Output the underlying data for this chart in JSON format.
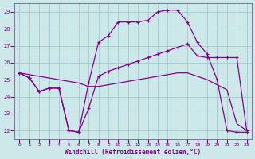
{
  "title": "Windchill (Refroidissement éolien,°C)",
  "background_color": "#cce8e8",
  "grid_color": "#9ac4cc",
  "line_color": "#880088",
  "xlim": [
    -0.5,
    23.5
  ],
  "ylim": [
    21.5,
    29.5
  ],
  "xticks": [
    0,
    1,
    2,
    3,
    4,
    5,
    6,
    7,
    8,
    9,
    10,
    11,
    12,
    13,
    14,
    15,
    16,
    17,
    18,
    19,
    20,
    21,
    22,
    23
  ],
  "yticks": [
    22,
    23,
    24,
    25,
    26,
    27,
    28,
    29
  ],
  "line_top_x": [
    0,
    1,
    2,
    3,
    4,
    5,
    6,
    7,
    8,
    9,
    10,
    11,
    12,
    13,
    14,
    15,
    16,
    17,
    18,
    19,
    20,
    21,
    22,
    23
  ],
  "line_top_y": [
    25.4,
    25.1,
    24.3,
    24.5,
    24.5,
    22.0,
    21.9,
    24.8,
    27.2,
    27.6,
    28.4,
    28.4,
    28.4,
    28.5,
    29.0,
    29.1,
    29.1,
    28.4,
    27.2,
    26.5,
    25.0,
    22.0,
    21.9,
    21.9
  ],
  "line_mid_x": [
    0,
    1,
    2,
    3,
    4,
    5,
    6,
    7,
    8,
    9,
    10,
    11,
    12,
    13,
    14,
    15,
    16,
    17,
    18,
    19,
    20,
    21,
    22,
    23
  ],
  "line_mid_y": [
    25.4,
    25.1,
    24.3,
    24.5,
    24.5,
    22.0,
    21.9,
    23.3,
    25.2,
    25.5,
    25.7,
    25.9,
    26.1,
    26.3,
    26.5,
    26.7,
    26.9,
    27.1,
    26.4,
    26.3,
    26.3,
    26.3,
    26.3,
    22.0
  ],
  "line_flat_x": [
    0,
    1,
    2,
    3,
    4,
    5,
    6,
    7,
    8,
    9,
    10,
    11,
    12,
    13,
    14,
    15,
    16,
    17,
    18,
    19,
    20,
    21,
    22,
    23
  ],
  "line_flat_y": [
    25.4,
    25.3,
    25.2,
    25.1,
    25.0,
    24.9,
    24.8,
    24.6,
    24.6,
    24.7,
    24.8,
    24.9,
    25.0,
    25.1,
    25.2,
    25.3,
    25.4,
    25.4,
    25.2,
    25.0,
    24.7,
    24.4,
    22.4,
    22.0
  ]
}
